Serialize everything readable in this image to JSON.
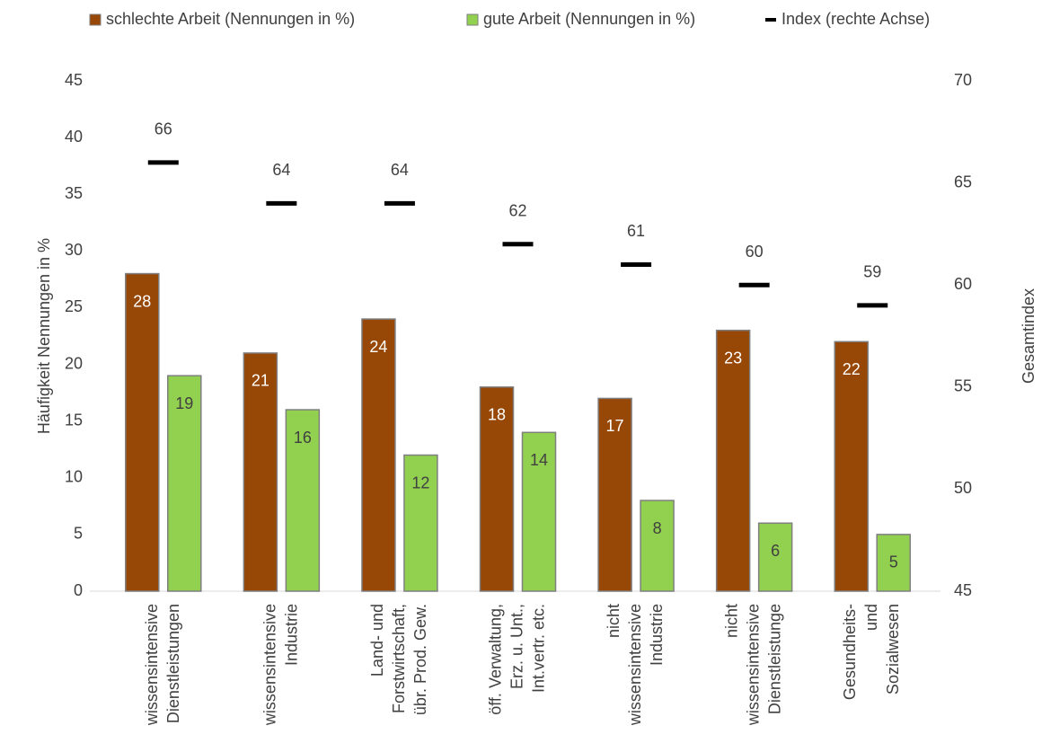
{
  "chart_data": {
    "type": "bar",
    "categories": [
      "wissensintensive\nDienstleistungen",
      "wissensintensive\nIndustrie",
      "Land- und\nForstwirtschaft,\nübr. Prod. Gew.",
      "öff. Verwaltung,\nErz. u. Unt.,\nInt.vertr. etc.",
      "nicht\nwissensintensive\nIndustrie",
      "nicht\nwissensintensive\nDienstleistunge",
      "Gesundheits-\nund\nSozialwesen"
    ],
    "series": [
      {
        "name": "schlechte Arbeit (Nennungen in %)",
        "type": "bar",
        "color": "#974706",
        "label_color": "#ffffff",
        "values": [
          28,
          21,
          24,
          18,
          17,
          23,
          22
        ]
      },
      {
        "name": "gute Arbeit (Nennungen in %)",
        "type": "bar",
        "color": "#92d050",
        "label_color": "#404040",
        "values": [
          19,
          16,
          12,
          14,
          8,
          6,
          5
        ]
      },
      {
        "name": "Index (rechte Achse)",
        "type": "marker",
        "axis": "y2",
        "color": "#000000",
        "label_color": "#404040",
        "values": [
          66,
          64,
          64,
          62,
          61,
          60,
          59
        ]
      }
    ],
    "ylabel": "Häufigkeit Nennungen in %",
    "y2label": "Gesamtindex",
    "ylim": [
      0,
      45
    ],
    "yticks": [
      0,
      5,
      10,
      15,
      20,
      25,
      30,
      35,
      40,
      45
    ],
    "y2lim": [
      45,
      70
    ],
    "y2ticks": [
      45,
      50,
      55,
      60,
      65,
      70
    ],
    "legend": "top",
    "grid": false
  }
}
